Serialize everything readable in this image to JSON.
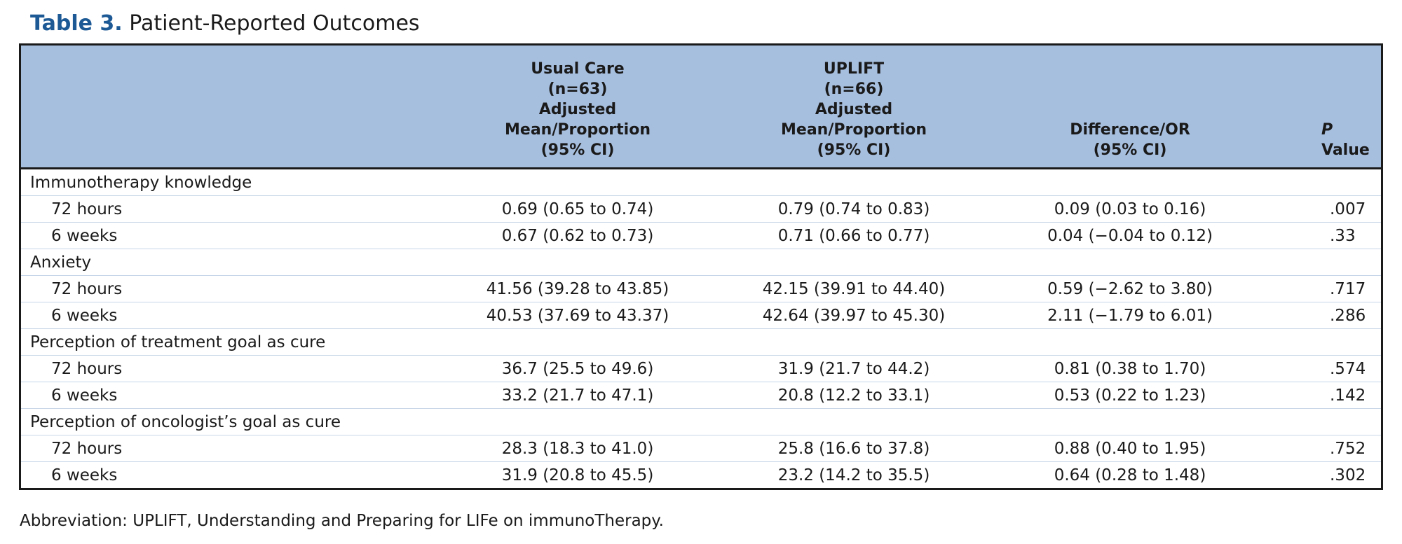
{
  "title": {
    "label": "Table 3.",
    "text": "Patient-Reported Outcomes"
  },
  "columns": {
    "usual_care": [
      "Usual Care",
      "(n=63)",
      "Adjusted",
      "Mean/Proportion",
      "(95% CI)"
    ],
    "uplift": [
      "UPLIFT",
      "(n=66)",
      "Adjusted",
      "Mean/Proportion",
      "(95% CI)"
    ],
    "difference": [
      "Difference/OR",
      "(95% CI)"
    ],
    "p_value": {
      "italic": "P",
      "text": " Value"
    }
  },
  "sections": [
    {
      "name": "Immunotherapy knowledge",
      "rows": [
        {
          "label": "72 hours",
          "usual_care": "0.69 (0.65 to 0.74)",
          "uplift": "0.79 (0.74 to 0.83)",
          "difference": "0.09 (0.03 to 0.16)",
          "p": ".007"
        },
        {
          "label": "6 weeks",
          "usual_care": "0.67 (0.62 to 0.73)",
          "uplift": "0.71 (0.66 to 0.77)",
          "difference": "0.04 (−0.04 to 0.12)",
          "p": ".33"
        }
      ]
    },
    {
      "name": "Anxiety",
      "rows": [
        {
          "label": "72 hours",
          "usual_care": "41.56 (39.28 to 43.85)",
          "uplift": "42.15 (39.91 to 44.40)",
          "difference": "0.59 (−2.62 to 3.80)",
          "p": ".717"
        },
        {
          "label": "6 weeks",
          "usual_care": "40.53 (37.69 to 43.37)",
          "uplift": "42.64 (39.97 to 45.30)",
          "difference": "2.11 (−1.79 to 6.01)",
          "p": ".286"
        }
      ]
    },
    {
      "name": "Perception of treatment goal as cure",
      "rows": [
        {
          "label": "72 hours",
          "usual_care": "36.7 (25.5 to 49.6)",
          "uplift": "31.9 (21.7 to 44.2)",
          "difference": "0.81 (0.38 to 1.70)",
          "p": ".574"
        },
        {
          "label": "6 weeks",
          "usual_care": "33.2 (21.7 to 47.1)",
          "uplift": "20.8 (12.2 to 33.1)",
          "difference": "0.53 (0.22 to 1.23)",
          "p": ".142"
        }
      ]
    },
    {
      "name": "Perception of oncologist’s goal as cure",
      "rows": [
        {
          "label": "72 hours",
          "usual_care": "28.3 (18.3 to 41.0)",
          "uplift": "25.8 (16.6 to 37.8)",
          "difference": "0.88 (0.40 to 1.95)",
          "p": ".752"
        },
        {
          "label": "6 weeks",
          "usual_care": "31.9 (20.8 to 45.5)",
          "uplift": "23.2 (14.2 to 35.5)",
          "difference": "0.64 (0.28 to 1.48)",
          "p": ".302"
        }
      ]
    }
  ],
  "footnote": "Abbreviation: UPLIFT, Understanding and Preparing for LIFe on immunoTherapy.",
  "colors": {
    "title_label": "#1d5a95",
    "header_bg": "#a7bfdf",
    "row_rule": "#c7d6e8",
    "border": "#1a1a1a"
  }
}
